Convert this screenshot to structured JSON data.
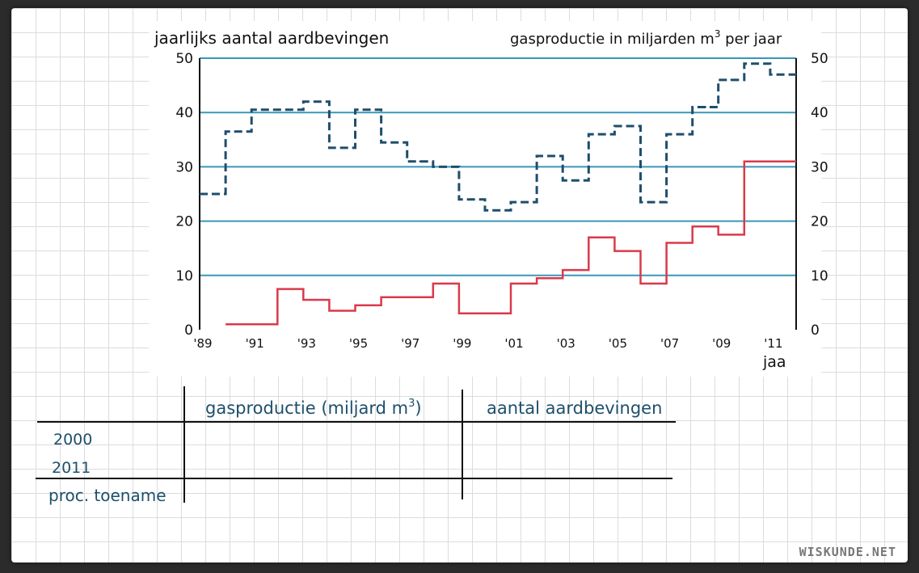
{
  "chart_data": {
    "type": "line",
    "step": true,
    "left_axis_label": "jaarlijks aantal aardbevingen",
    "right_axis_label": "gasproductie in miljarden m",
    "right_axis_label_sup": "3",
    "right_axis_label_end": " per jaar",
    "xlabel": "jaa",
    "x_tick_labels": [
      "'89",
      "'91",
      "'93",
      "'95",
      "'97",
      "'99",
      "'01",
      "'03",
      "'05",
      "'07",
      "'09",
      "'11"
    ],
    "y_ticks": [
      0,
      10,
      20,
      30,
      40,
      50
    ],
    "ylim": [
      0,
      50
    ],
    "xlim": [
      1989,
      2012
    ],
    "grid": true,
    "series": [
      {
        "key": "gas",
        "style": "dashed",
        "color": "#1f4e6b",
        "x": [
          1989,
          1990,
          1991,
          1992,
          1993,
          1994,
          1995,
          1996,
          1997,
          1998,
          1999,
          2000,
          2001,
          2002,
          2003,
          2004,
          2005,
          2006,
          2007,
          2008,
          2009,
          2010,
          2011
        ],
        "values": [
          25,
          36.5,
          40.5,
          40.5,
          42,
          33.5,
          40.5,
          34.5,
          31,
          30,
          24,
          22,
          23.5,
          32,
          27.5,
          36,
          37.5,
          23.5,
          36,
          41,
          46,
          49,
          47
        ]
      },
      {
        "key": "quakes",
        "style": "solid",
        "color": "#d93a4a",
        "x": [
          1990,
          1991,
          1992,
          1993,
          1994,
          1995,
          1996,
          1997,
          1998,
          1999,
          2000,
          2001,
          2002,
          2003,
          2004,
          2005,
          2006,
          2007,
          2008,
          2009,
          2010,
          2011
        ],
        "values": [
          1,
          1,
          7.5,
          5.5,
          3.5,
          4.5,
          6,
          6,
          8.5,
          3,
          3,
          8.5,
          9.5,
          11,
          17,
          14.5,
          8.5,
          16,
          19,
          17.5,
          31,
          31
        ]
      }
    ]
  },
  "table": {
    "col_headers": [
      "gasproductie (miljard m",
      "aantal aardbevingen"
    ],
    "col1_sup": "3",
    "col1_end": ")",
    "rows": [
      "2000",
      "2011",
      "proc. toename"
    ]
  },
  "watermark": "WISKUNDE.NET",
  "colors": {
    "gridline": "#3a97b8",
    "gas": "#1f4e6b",
    "quakes": "#d93a4a",
    "table_text": "#1d4f6b"
  }
}
